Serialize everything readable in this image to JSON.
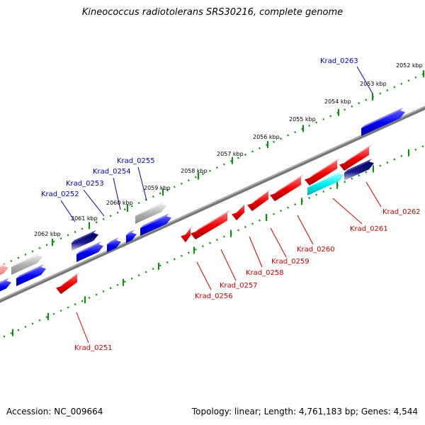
{
  "title": "Kineococcus radiotolerans SRS30216, complete genome",
  "accession": "Accession: NC_009664",
  "summary": "Topology: linear; Length: 4,761,183 bp; Genes: 4,544",
  "colors": {
    "forward_gene": "#0000ee",
    "reverse_gene": "#ee0000",
    "rna_gene": "#aaaaaa",
    "ruler_dots": "#009900",
    "backbone": "#888888",
    "forward_label": "#0000aa",
    "reverse_label": "#cc0000"
  },
  "ruler": {
    "ticks": [
      "2052 kbp",
      "2053 kbp",
      "2054 kbp",
      "2055 kbp",
      "2056 kbp",
      "2057 kbp",
      "2058 kbp",
      "2059 kbp",
      "2060 kbp",
      "2061 kbp",
      "2062 kbp"
    ]
  },
  "genes": {
    "forward": [
      {
        "label": "Krad_0252",
        "style": "dark"
      },
      {
        "label": "Krad_0253",
        "style": "blue"
      },
      {
        "label": "Krad_0254",
        "style": "blue"
      },
      {
        "label": "Krad_0255",
        "style": "gray"
      },
      {
        "label": "Krad_0263",
        "style": "blue"
      }
    ],
    "reverse": [
      {
        "label": "Krad_0251",
        "style": "red"
      },
      {
        "label": "Krad_0256",
        "style": "red"
      },
      {
        "label": "Krad_0257",
        "style": "red"
      },
      {
        "label": "Krad_0258",
        "style": "red"
      },
      {
        "label": "Krad_0259",
        "style": "red"
      },
      {
        "label": "Krad_0260",
        "style": "red"
      },
      {
        "label": "Krad_0261",
        "style": "cyan"
      },
      {
        "label": "Krad_0262",
        "style": "dark"
      }
    ]
  }
}
